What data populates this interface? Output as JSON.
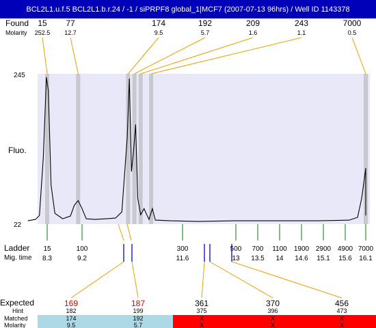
{
  "header": {
    "title": "BCL2L1.u.f.5  BCL2L1.b.r.24 / -1 / siPRPF8 global_1|MCF7 (2007-07-13 96hrs) / Well ID 1143378"
  },
  "labels": {
    "found": "Found",
    "molarity": "Molarity",
    "fluo": "Fluo.",
    "ladder": "Ladder",
    "mig_time": "Mig. time",
    "expected": "Expected",
    "hint": "Hint",
    "matched": "Matched",
    "molarity_row": "Molarity"
  },
  "colors": {
    "title_bg": "#0000b8",
    "plot_bg": "#e8e8f8",
    "band": "#c8c8d0",
    "found_line": "#f0a000",
    "ladder_tick": "#008000",
    "expected_line": "#f0a000",
    "marker_blue": "#0000cc",
    "expected_red_text": "#dd0000",
    "matched_good_bg": "#add8e6",
    "matched_bad_bg": "#ff0000"
  },
  "chart_data": {
    "type": "line",
    "ylim": [
      22,
      245
    ],
    "y_ticks": [
      "245",
      "22"
    ],
    "ylabel": "Fluo.",
    "found": [
      {
        "size": "15",
        "molarity": "252.5",
        "time": 8.3
      },
      {
        "size": "77",
        "molarity": "12.7",
        "time": 9.1
      },
      {
        "size": "174",
        "molarity": "9.5",
        "time": 10.3
      },
      {
        "size": "192",
        "molarity": "5.7",
        "time": 10.45
      },
      {
        "size": "209",
        "molarity": "1.6",
        "time": 10.6
      },
      {
        "size": "243",
        "molarity": "1.1",
        "time": 10.85
      },
      {
        "size": "7000",
        "molarity": "0.5",
        "time": 16.1
      }
    ],
    "ladder": [
      {
        "size": "15",
        "time": "8.3"
      },
      {
        "size": "100",
        "time": "9.2"
      },
      {
        "size": "300",
        "time": "11.6"
      },
      {
        "size": "500",
        "time": "13"
      },
      {
        "size": "700",
        "time": "13.5"
      },
      {
        "size": "1100",
        "time": "14"
      },
      {
        "size": "1900",
        "time": "14.6"
      },
      {
        "size": "2900",
        "time": "15.1"
      },
      {
        "size": "4900",
        "time": "15.6"
      },
      {
        "size": "7000",
        "time": "16.1"
      }
    ],
    "trace": [
      {
        "time": 7.8,
        "fluo": 27
      },
      {
        "time": 8.0,
        "fluo": 29
      },
      {
        "time": 8.1,
        "fluo": 35
      },
      {
        "time": 8.2,
        "fluo": 120
      },
      {
        "time": 8.28,
        "fluo": 240
      },
      {
        "time": 8.33,
        "fluo": 220
      },
      {
        "time": 8.4,
        "fluo": 80
      },
      {
        "time": 8.5,
        "fluo": 38
      },
      {
        "time": 8.7,
        "fluo": 30
      },
      {
        "time": 8.9,
        "fluo": 34
      },
      {
        "time": 9.0,
        "fluo": 50
      },
      {
        "time": 9.1,
        "fluo": 57
      },
      {
        "time": 9.2,
        "fluo": 45
      },
      {
        "time": 9.3,
        "fluo": 30
      },
      {
        "time": 9.5,
        "fluo": 29
      },
      {
        "time": 9.8,
        "fluo": 30
      },
      {
        "time": 10.0,
        "fluo": 31
      },
      {
        "time": 10.15,
        "fluo": 40
      },
      {
        "time": 10.28,
        "fluo": 150
      },
      {
        "time": 10.33,
        "fluo": 238
      },
      {
        "time": 10.38,
        "fluo": 100
      },
      {
        "time": 10.43,
        "fluo": 130
      },
      {
        "time": 10.48,
        "fluo": 170
      },
      {
        "time": 10.53,
        "fluo": 60
      },
      {
        "time": 10.6,
        "fluo": 36
      },
      {
        "time": 10.68,
        "fluo": 45
      },
      {
        "time": 10.73,
        "fluo": 38
      },
      {
        "time": 10.8,
        "fluo": 29
      },
      {
        "time": 10.88,
        "fluo": 45
      },
      {
        "time": 10.95,
        "fluo": 28
      },
      {
        "time": 11.3,
        "fluo": 27
      },
      {
        "time": 12.0,
        "fluo": 26
      },
      {
        "time": 13.0,
        "fluo": 27
      },
      {
        "time": 14.0,
        "fluo": 27
      },
      {
        "time": 15.0,
        "fluo": 27
      },
      {
        "time": 15.7,
        "fluo": 28
      },
      {
        "time": 15.9,
        "fluo": 32
      },
      {
        "time": 16.0,
        "fluo": 60
      },
      {
        "time": 16.1,
        "fluo": 105
      },
      {
        "time": 16.2,
        "fluo": 60
      },
      {
        "time": 16.3,
        "fluo": 35
      }
    ],
    "expected": [
      {
        "size": "169",
        "hint": "182",
        "matched": "174",
        "molarity": "9.5",
        "highlight": true,
        "ok": true
      },
      {
        "size": "187",
        "hint": "199",
        "matched": "192",
        "molarity": "5.7",
        "highlight": true,
        "ok": true
      },
      {
        "size": "361",
        "hint": "375",
        "matched": "X",
        "molarity": "X",
        "highlight": false,
        "ok": false
      },
      {
        "size": "370",
        "hint": "396",
        "matched": "X",
        "molarity": "X",
        "highlight": false,
        "ok": false
      },
      {
        "size": "456",
        "hint": "473",
        "matched": "X",
        "molarity": "X",
        "highlight": false,
        "ok": false
      }
    ]
  }
}
